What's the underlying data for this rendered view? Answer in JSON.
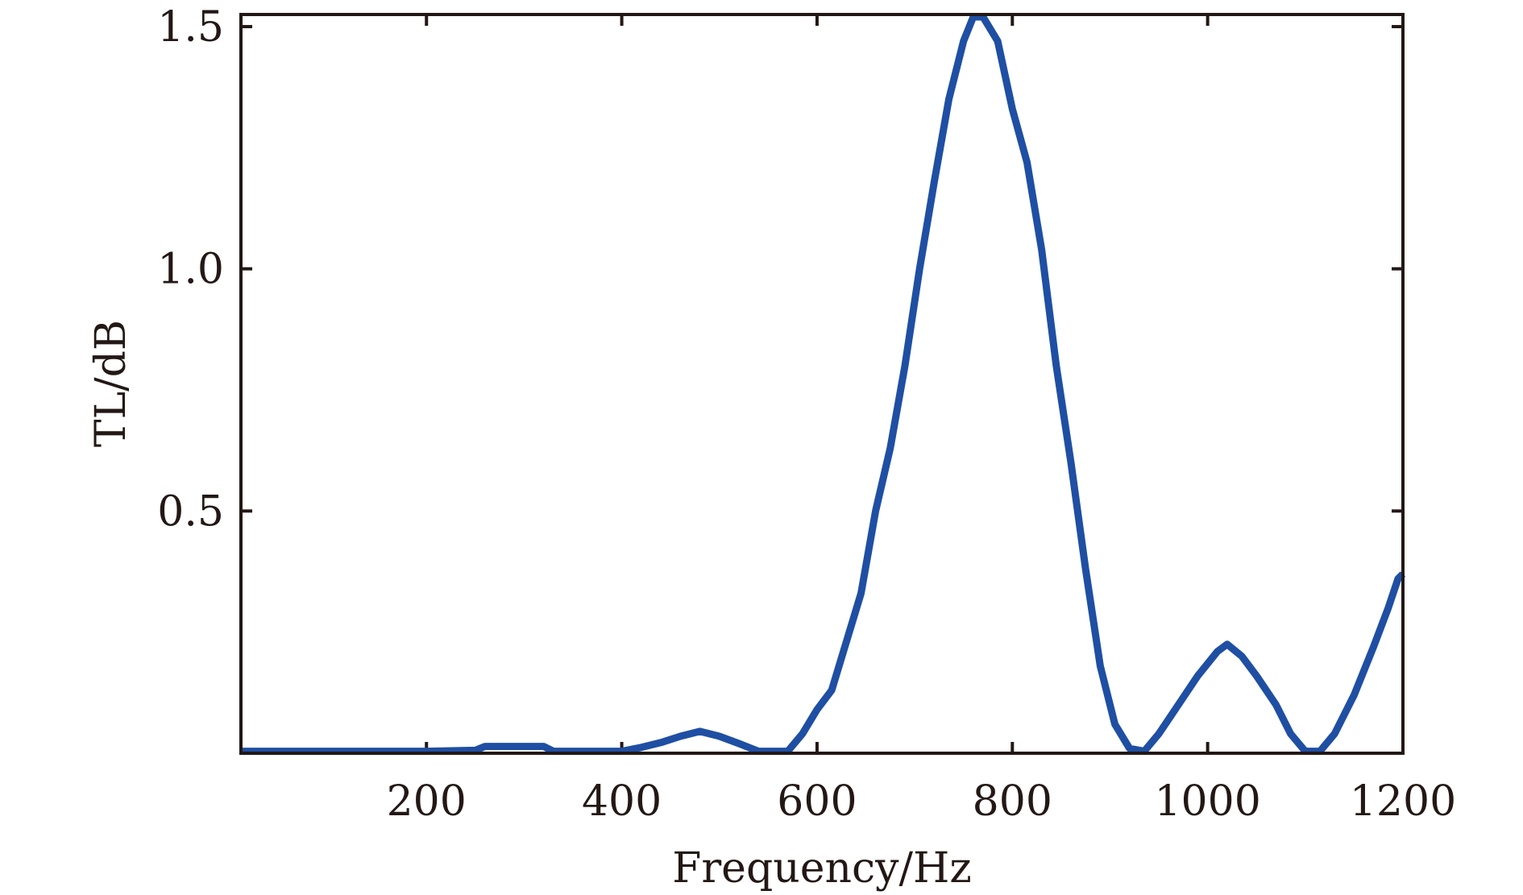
{
  "chart_data": {
    "type": "line",
    "title": "",
    "xlabel": "Frequency/Hz",
    "ylabel": "TL/dB",
    "xlim": [
      10,
      1200
    ],
    "ylim": [
      0,
      1.525
    ],
    "xticks": [
      200,
      400,
      600,
      800,
      1000,
      1200
    ],
    "xtick_labels": [
      "200",
      "400",
      "600",
      "800",
      "1000",
      "1200"
    ],
    "yticks": [
      0.5,
      1.0,
      1.5
    ],
    "ytick_labels": [
      "0.5",
      "1.0",
      "1.5"
    ],
    "grid": false,
    "line_color": "#1f4fa3",
    "series": [
      {
        "name": "TL",
        "x": [
          10,
          190,
          200,
          250,
          260,
          320,
          330,
          400,
          420,
          440,
          460,
          480,
          500,
          520,
          540,
          570,
          585,
          600,
          615,
          630,
          645,
          660,
          675,
          690,
          705,
          720,
          735,
          750,
          760,
          770,
          785,
          800,
          815,
          830,
          845,
          860,
          875,
          890,
          905,
          920,
          935,
          950,
          970,
          990,
          1010,
          1020,
          1035,
          1050,
          1070,
          1085,
          1100,
          1115,
          1130,
          1150,
          1170,
          1185,
          1195,
          1200
        ],
        "y": [
          0.004,
          0.004,
          0.004,
          0.006,
          0.014,
          0.014,
          0.004,
          0.004,
          0.012,
          0.022,
          0.035,
          0.045,
          0.035,
          0.02,
          0.004,
          0.004,
          0.04,
          0.09,
          0.13,
          0.23,
          0.33,
          0.5,
          0.63,
          0.8,
          1.0,
          1.18,
          1.35,
          1.47,
          1.52,
          1.52,
          1.47,
          1.33,
          1.22,
          1.04,
          0.8,
          0.6,
          0.38,
          0.18,
          0.06,
          0.01,
          0.004,
          0.04,
          0.1,
          0.16,
          0.21,
          0.225,
          0.2,
          0.16,
          0.1,
          0.04,
          0.004,
          0.004,
          0.04,
          0.12,
          0.22,
          0.3,
          0.36,
          0.37
        ]
      }
    ]
  }
}
